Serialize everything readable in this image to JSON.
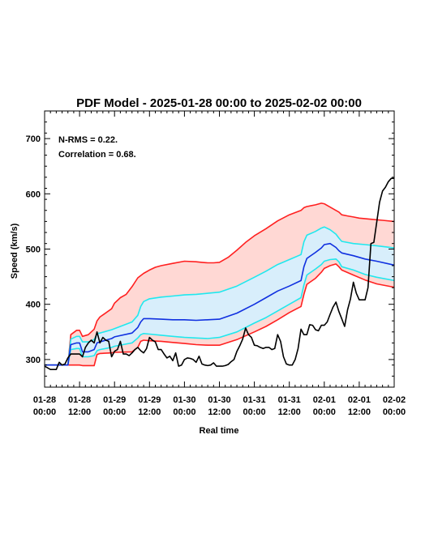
{
  "chart_data": {
    "type": "line",
    "title": "PDF Model - 2025-01-28 00:00 to 2025-02-02 00:00",
    "xlabel": "Real time",
    "ylabel": "Speed (km/s)",
    "ylim": [
      250,
      750
    ],
    "y_ticks": [
      300,
      400,
      500,
      600,
      700
    ],
    "x_unit": "hours since 2025-01-28 00:00",
    "xlim": [
      0,
      120
    ],
    "x_ticks": [
      {
        "x": 0,
        "l1": "01-28",
        "l2": "00:00"
      },
      {
        "x": 12,
        "l1": "01-28",
        "l2": "12:00"
      },
      {
        "x": 24,
        "l1": "01-29",
        "l2": "00:00"
      },
      {
        "x": 36,
        "l1": "01-29",
        "l2": "12:00"
      },
      {
        "x": 48,
        "l1": "01-30",
        "l2": "00:00"
      },
      {
        "x": 60,
        "l1": "01-30",
        "l2": "12:00"
      },
      {
        "x": 72,
        "l1": "01-31",
        "l2": "00:00"
      },
      {
        "x": 84,
        "l1": "01-31",
        "l2": "12:00"
      },
      {
        "x": 96,
        "l1": "02-01",
        "l2": "00:00"
      },
      {
        "x": 108,
        "l1": "02-01",
        "l2": "12:00"
      },
      {
        "x": 120,
        "l1": "02-02",
        "l2": "00:00"
      }
    ],
    "annotations": [
      "N-RMS = 0.22.",
      "Correlation = 0.68."
    ],
    "colors": {
      "outer": "#ff2020",
      "inner": "#20e8ee",
      "median": "#1030e0",
      "observed": "#000000",
      "outer_fill": "#ffd8d4",
      "inner_fill": "#d8eefb"
    },
    "series": [
      {
        "key": "outer_upper",
        "x": [
          0,
          8,
          9,
          11,
          12,
          13,
          15,
          17,
          18,
          19,
          23,
          24,
          26,
          28,
          30,
          32,
          33,
          34,
          36,
          38,
          40,
          44,
          48,
          52,
          54,
          56,
          58,
          60,
          63,
          66,
          69,
          72,
          76,
          80,
          84,
          88,
          89,
          90,
          93,
          95,
          96,
          98,
          100,
          101,
          102,
          104,
          106,
          108,
          112,
          116,
          120
        ],
        "values": [
          290,
          290,
          345,
          353,
          353,
          342,
          345,
          355,
          370,
          377,
          392,
          402,
          412,
          418,
          432,
          448,
          452,
          456,
          462,
          467,
          470,
          474,
          478,
          477,
          476,
          475,
          475,
          476,
          485,
          498,
          512,
          524,
          537,
          551,
          562,
          570,
          575,
          577,
          580,
          583,
          582,
          576,
          570,
          567,
          562,
          560,
          558,
          556,
          554,
          552,
          550
        ]
      },
      {
        "key": "inner_upper",
        "x": [
          0,
          8,
          9,
          11,
          12,
          13,
          15,
          17,
          18,
          19,
          23,
          24,
          30,
          32,
          33,
          34,
          36,
          40,
          44,
          48,
          52,
          56,
          60,
          66,
          72,
          76,
          80,
          84,
          88,
          89,
          90,
          93,
          95,
          96,
          98,
          100,
          101,
          102,
          106,
          110,
          114,
          120
        ],
        "values": [
          290,
          290,
          337,
          342,
          342,
          332,
          332,
          336,
          347,
          348,
          354,
          356,
          368,
          380,
          396,
          405,
          410,
          413,
          415,
          417,
          418,
          420,
          422,
          433,
          449,
          460,
          472,
          481,
          490,
          513,
          525,
          532,
          538,
          540,
          535,
          527,
          520,
          514,
          510,
          508,
          506,
          502
        ]
      },
      {
        "key": "median",
        "x": [
          0,
          8,
          9,
          11,
          12,
          13,
          15,
          17,
          18,
          19,
          23,
          24,
          30,
          32,
          33,
          34,
          36,
          40,
          44,
          48,
          52,
          56,
          60,
          66,
          72,
          76,
          80,
          84,
          88,
          89,
          90,
          93,
          95,
          96,
          98,
          100,
          101,
          102,
          106,
          110,
          114,
          120
        ],
        "values": [
          290,
          290,
          327,
          330,
          330,
          314,
          314,
          318,
          330,
          332,
          338,
          341,
          348,
          358,
          368,
          374,
          374,
          373,
          372,
          372,
          371,
          372,
          373,
          384,
          400,
          412,
          424,
          433,
          443,
          468,
          483,
          494,
          502,
          508,
          510,
          503,
          497,
          493,
          488,
          482,
          478,
          471
        ]
      },
      {
        "key": "inner_lower",
        "x": [
          0,
          8,
          9,
          11,
          12,
          13,
          15,
          17,
          18,
          19,
          23,
          24,
          30,
          32,
          33,
          34,
          36,
          40,
          44,
          48,
          52,
          56,
          60,
          66,
          72,
          76,
          80,
          84,
          88,
          89,
          90,
          93,
          95,
          96,
          98,
          100,
          101,
          102,
          106,
          110,
          114,
          120
        ],
        "values": [
          290,
          290,
          318,
          320,
          320,
          305,
          305,
          307,
          316,
          318,
          322,
          324,
          330,
          339,
          345,
          347,
          346,
          344,
          342,
          340,
          339,
          338,
          340,
          350,
          366,
          376,
          388,
          400,
          412,
          435,
          453,
          464,
          472,
          478,
          481,
          482,
          477,
          468,
          462,
          454,
          449,
          443
        ]
      },
      {
        "key": "outer_lower",
        "x": [
          0,
          8,
          9,
          11,
          12,
          13,
          15,
          17,
          18,
          19,
          23,
          24,
          30,
          32,
          33,
          34,
          36,
          40,
          44,
          48,
          52,
          56,
          60,
          66,
          72,
          76,
          80,
          84,
          88,
          89,
          90,
          93,
          95,
          96,
          98,
          100,
          101,
          102,
          106,
          110,
          114,
          120
        ],
        "values": [
          290,
          290,
          290,
          290,
          290,
          289,
          289,
          289,
          309,
          311,
          312,
          313,
          314,
          322,
          333,
          335,
          334,
          333,
          331,
          329,
          327,
          326,
          326,
          336,
          350,
          360,
          372,
          385,
          396,
          418,
          436,
          447,
          458,
          465,
          470,
          473,
          468,
          462,
          453,
          444,
          437,
          431
        ]
      },
      {
        "key": "observed",
        "x": [
          0,
          2,
          4,
          5,
          6,
          7,
          8,
          9,
          10,
          11,
          12,
          13,
          14,
          15,
          16,
          17,
          18,
          19,
          20,
          21,
          22,
          23,
          24,
          25,
          26,
          27,
          28,
          29,
          30,
          31,
          32,
          33,
          34,
          35,
          36,
          37,
          38,
          39,
          40,
          41,
          42,
          43,
          44,
          45,
          46,
          47,
          48,
          49,
          50,
          51,
          52,
          53,
          54,
          55,
          56,
          57,
          58,
          59,
          60,
          61,
          62,
          63,
          64,
          65,
          66,
          67,
          68,
          69,
          70,
          71,
          72,
          73,
          74,
          75,
          76,
          77,
          78,
          79,
          80,
          81,
          82,
          83,
          84,
          85,
          86,
          87,
          88,
          89,
          90,
          91,
          92,
          93,
          94,
          95,
          96,
          97,
          98,
          99,
          100,
          101,
          102,
          103,
          104,
          105,
          106,
          107,
          108,
          109,
          110,
          111,
          112,
          113,
          114,
          115,
          116,
          117,
          118,
          119,
          120
        ],
        "values": [
          288,
          282,
          282,
          295,
          290,
          292,
          303,
          310,
          310,
          310,
          310,
          305,
          322,
          330,
          335,
          330,
          350,
          330,
          340,
          335,
          333,
          305,
          315,
          318,
          333,
          310,
          310,
          307,
          312,
          318,
          322,
          316,
          312,
          320,
          340,
          335,
          332,
          318,
          318,
          310,
          303,
          306,
          298,
          312,
          288,
          290,
          300,
          303,
          302,
          300,
          295,
          306,
          292,
          290,
          289,
          290,
          294,
          288,
          288,
          288,
          289,
          291,
          296,
          300,
          315,
          325,
          337,
          357,
          345,
          340,
          326,
          325,
          322,
          320,
          322,
          322,
          318,
          320,
          345,
          333,
          305,
          292,
          290,
          290,
          300,
          320,
          355,
          345,
          345,
          363,
          362,
          354,
          352,
          362,
          362,
          368,
          382,
          395,
          404,
          387,
          374,
          360,
          390,
          410,
          440,
          420,
          408,
          408,
          408,
          430,
          510,
          512,
          548,
          585,
          605,
          612,
          622,
          628,
          628
        ]
      }
    ]
  }
}
